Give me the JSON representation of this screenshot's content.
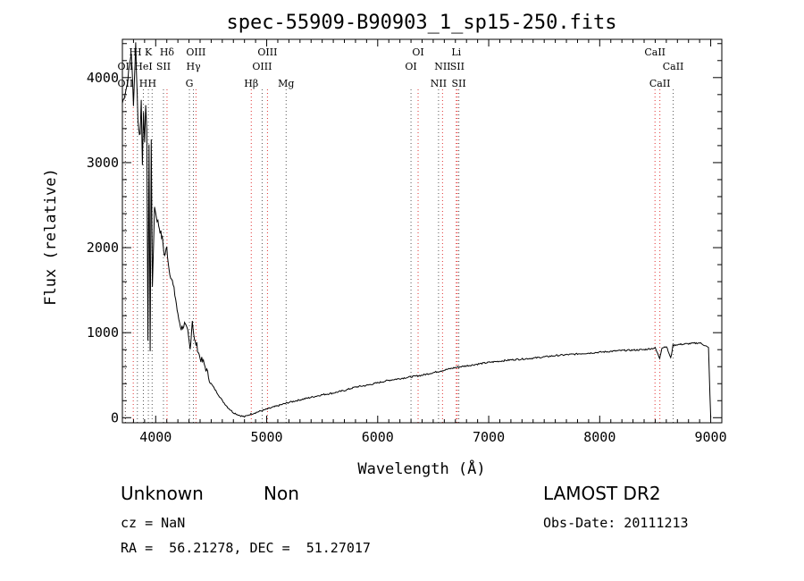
{
  "chart_data": {
    "type": "line",
    "title": "spec-55909-B90903_1_sp15-250.fits",
    "xlabel": "Wavelength (Å)",
    "ylabel": "Flux (relative)",
    "xlim": [
      3700,
      9100
    ],
    "ylim": [
      -60,
      4450
    ],
    "x_ticks": [
      4000,
      5000,
      6000,
      7000,
      8000,
      9000
    ],
    "y_ticks": [
      0,
      1000,
      2000,
      3000,
      4000
    ],
    "grid": false,
    "series": [
      {
        "x": [
          3700,
          3740,
          3780,
          3800,
          3820,
          3840,
          3860,
          3870,
          3880,
          3890,
          3900,
          3910,
          3920,
          3930,
          3940,
          3950,
          3960,
          3970,
          3980,
          3990,
          4000,
          4020,
          4040,
          4060,
          4080,
          4100,
          4120,
          4150,
          4180,
          4200,
          4230,
          4260,
          4290,
          4310,
          4330,
          4350,
          4370,
          4400,
          4430,
          4460,
          4500,
          4550,
          4600,
          4650,
          4700,
          4750,
          4800,
          4850,
          4900,
          5000,
          5100,
          5200,
          5300,
          5400,
          5500,
          5600,
          5700,
          5800,
          5900,
          6000,
          6100,
          6200,
          6300,
          6400,
          6500,
          6600,
          6700,
          6800,
          6900,
          7000,
          7200,
          7400,
          7600,
          7800,
          8000,
          8200,
          8400,
          8500,
          8540,
          8560,
          8600,
          8640,
          8660,
          8700,
          8800,
          8900,
          8950,
          8980,
          9000
        ],
        "y": [
          3700,
          3900,
          4300,
          3700,
          4400,
          3500,
          3300,
          3700,
          3000,
          3600,
          3200,
          3700,
          3400,
          900,
          3200,
          800,
          3300,
          1500,
          2000,
          2500,
          2400,
          2300,
          2200,
          2100,
          1900,
          2000,
          1750,
          1600,
          1400,
          1200,
          1050,
          1100,
          1000,
          800,
          1150,
          900,
          850,
          700,
          650,
          550,
          400,
          300,
          200,
          120,
          60,
          30,
          10,
          40,
          60,
          100,
          140,
          180,
          210,
          240,
          270,
          290,
          320,
          360,
          380,
          410,
          440,
          460,
          480,
          500,
          530,
          560,
          590,
          610,
          630,
          650,
          680,
          700,
          730,
          750,
          770,
          790,
          800,
          820,
          700,
          820,
          840,
          700,
          850,
          860,
          870,
          880,
          850,
          820,
          0
        ]
      }
    ],
    "lines": [
      {
        "name": "H",
        "wavelength": 3798,
        "color": "#e03030",
        "row": 0
      },
      {
        "name": "OII",
        "wavelength": 3727,
        "color": "#e03030",
        "row": 1
      },
      {
        "name": "OII",
        "wavelength": 3727,
        "color": "#555555",
        "row": 2
      },
      {
        "name": "H",
        "wavelength": 3835,
        "color": "#555555",
        "row": 0
      },
      {
        "name": "HeI",
        "wavelength": 3889,
        "color": "#555555",
        "row": 1
      },
      {
        "name": "H",
        "wavelength": 3889,
        "color": "#555555",
        "row": 2
      },
      {
        "name": "K",
        "wavelength": 3934,
        "color": "#555555",
        "row": 0
      },
      {
        "name": "H",
        "wavelength": 3968,
        "color": "#555555",
        "row": 2
      },
      {
        "name": "SII",
        "wavelength": 4070,
        "color": "#555555",
        "row": 1
      },
      {
        "name": "Hδ",
        "wavelength": 4102,
        "color": "#e03030",
        "row": 0
      },
      {
        "name": "OIII",
        "wavelength": 4363,
        "color": "#e03030",
        "row": 0
      },
      {
        "name": "Hγ",
        "wavelength": 4340,
        "color": "#555555",
        "row": 1
      },
      {
        "name": "G",
        "wavelength": 4304,
        "color": "#555555",
        "row": 2
      },
      {
        "name": "Hβ",
        "wavelength": 4861,
        "color": "#e03030",
        "row": 2
      },
      {
        "name": "OIII",
        "wavelength": 5007,
        "color": "#e03030",
        "row": 0
      },
      {
        "name": "OIII",
        "wavelength": 4959,
        "color": "#555555",
        "row": 1
      },
      {
        "name": "Mg",
        "wavelength": 5175,
        "color": "#555555",
        "row": 2
      },
      {
        "name": "OI",
        "wavelength": 6364,
        "color": "#e03030",
        "row": 0
      },
      {
        "name": "OI",
        "wavelength": 6300,
        "color": "#555555",
        "row": 1
      },
      {
        "name": "Li",
        "wavelength": 6708,
        "color": "#e03030",
        "row": 0
      },
      {
        "name": "NII",
        "wavelength": 6584,
        "color": "#e03030",
        "row": 1
      },
      {
        "name": "SII",
        "wavelength": 6717,
        "color": "#e03030",
        "row": 1
      },
      {
        "name": "NII",
        "wavelength": 6548,
        "color": "#555555",
        "row": 2
      },
      {
        "name": "SII",
        "wavelength": 6731,
        "color": "#555555",
        "row": 2
      },
      {
        "name": "CaII",
        "wavelength": 8498,
        "color": "#e03030",
        "row": 0
      },
      {
        "name": "CaII",
        "wavelength": 8662,
        "color": "#555555",
        "row": 1
      },
      {
        "name": "CaII",
        "wavelength": 8542,
        "color": "#e03030",
        "row": 2
      }
    ]
  },
  "info": {
    "object_type": "Unknown",
    "subclass": "Non",
    "survey": "LAMOST DR2",
    "cz": "cz = NaN",
    "obs_date": "Obs-Date: 20111213",
    "coords": "RA =  56.21278, DEC =  51.27017"
  }
}
